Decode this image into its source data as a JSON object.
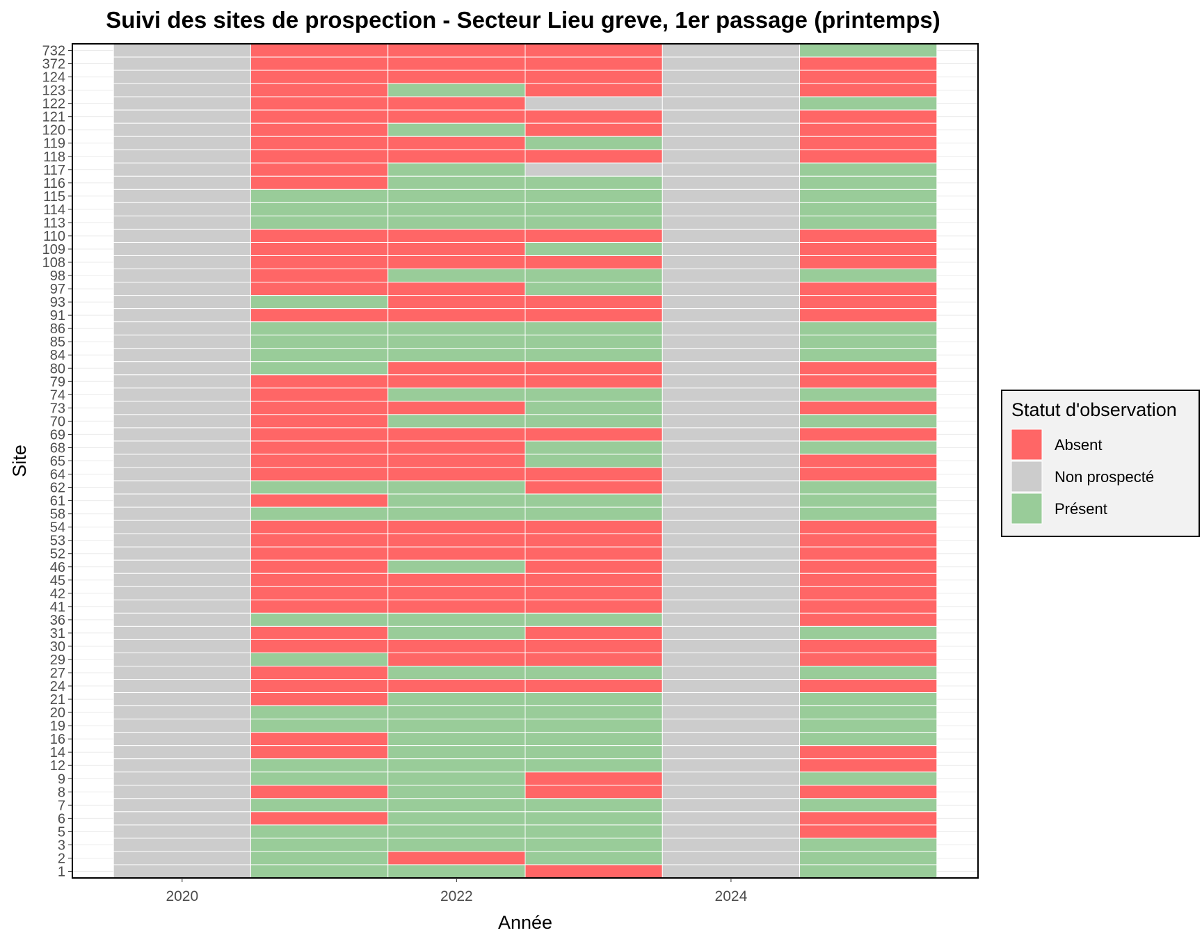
{
  "chart_data": {
    "type": "heatmap",
    "title": "Suivi des sites de prospection - Secteur Lieu greve, 1er passage (printemps)",
    "xlabel": "Année",
    "ylabel": "Site",
    "x_ticks": [
      "2020",
      "2022",
      "2024"
    ],
    "years": [
      2020,
      2021,
      2022,
      2023,
      2024,
      2025
    ],
    "xlim": [
      2019.2,
      2025.8
    ],
    "legend": {
      "title": "Statut d'observation",
      "placement": "right",
      "entries": [
        {
          "key": "A",
          "label": "Absent",
          "color": "#ff6666"
        },
        {
          "key": "N",
          "label": "Non prospecté",
          "color": "#cccccc"
        },
        {
          "key": "P",
          "label": "Présent",
          "color": "#99cc99"
        }
      ]
    },
    "status_codes": {
      "A": "Absent",
      "N": "Non prospecté",
      "P": "Présent"
    },
    "sites": [
      "732",
      "372",
      "124",
      "123",
      "122",
      "121",
      "120",
      "119",
      "118",
      "117",
      "116",
      "115",
      "114",
      "113",
      "110",
      "109",
      "108",
      "98",
      "97",
      "93",
      "91",
      "86",
      "85",
      "84",
      "80",
      "79",
      "74",
      "73",
      "70",
      "69",
      "68",
      "65",
      "64",
      "62",
      "61",
      "58",
      "54",
      "53",
      "52",
      "46",
      "45",
      "42",
      "41",
      "36",
      "31",
      "30",
      "29",
      "27",
      "24",
      "21",
      "20",
      "19",
      "16",
      "14",
      "12",
      "9",
      "8",
      "7",
      "6",
      "5",
      "3",
      "2",
      "1"
    ],
    "status": [
      "NAAANP",
      "NAAANA",
      "NAAANA",
      "NAPANA",
      "NAANNP",
      "NAAANA",
      "NAPANA",
      "NAAPNA",
      "NAAANA",
      "NAPNNP",
      "NAPPNP",
      "NPPPNP",
      "NPPPNP",
      "NPPPNP",
      "NAAANA",
      "NAAPNA",
      "NAAANA",
      "NAPPNP",
      "NAAPNA",
      "NPAANA",
      "NAAANA",
      "NPPPNP",
      "NPPPNP",
      "NPPPNP",
      "NPAANA",
      "NAAANA",
      "NAPPNP",
      "NAAPNA",
      "NAPPNP",
      "NAAANA",
      "NAAPNP",
      "NAAPNA",
      "NAAANA",
      "NPPANP",
      "NAPPNP",
      "NPPPNP",
      "NAAANA",
      "NAAANA",
      "NAAANA",
      "NAPANA",
      "NAAANA",
      "NAAANA",
      "NAAANA",
      "NPPPNA",
      "NAPANP",
      "NAAANA",
      "NPAANA",
      "NAPPNP",
      "NAAANA",
      "NAPPNP",
      "NPPPNP",
      "NPPPNP",
      "NAPPNP",
      "NAPPNA",
      "NPPPNA",
      "NPPANP",
      "NAPANA",
      "NPPPNP",
      "NAPPNA",
      "NPPPNA",
      "NPPPNP",
      "NPAPNP",
      "NPPANP"
    ],
    "grid": true
  }
}
